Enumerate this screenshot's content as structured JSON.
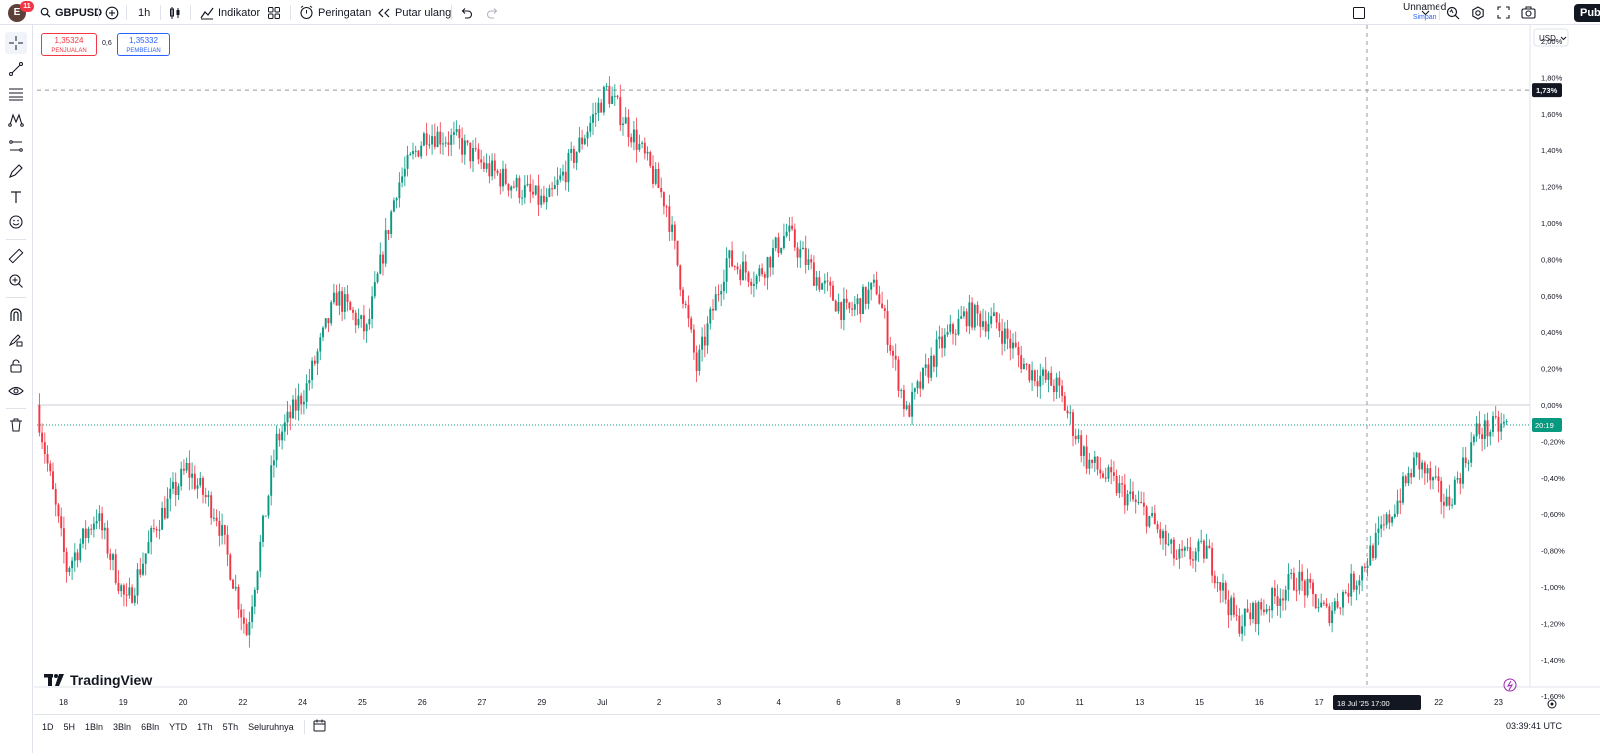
{
  "topbar": {
    "avatar_letter": "E",
    "notification_count": "11",
    "symbol": "GBPUSD",
    "interval": "1h",
    "indicators_label": "Indikator",
    "alert_label": "Peringatan",
    "replay_label": "Putar ulang",
    "layout_name": "Unnamed",
    "layout_save": "Simpan",
    "publish_label": "Pub"
  },
  "order_panel": {
    "sell_price": "1,35324",
    "sell_label": "PENJUALAN",
    "spread": "0,6",
    "buy_price": "1,35332",
    "buy_label": "PEMBELIAN"
  },
  "price_scale": {
    "currency": "USD",
    "crosshair_label": "1,73%",
    "countdown_label": "20:19"
  },
  "time_scale": {
    "crosshair_label": "18 Jul '25   17:00"
  },
  "watermark": "TradingView",
  "bottombar": {
    "ranges": [
      "1D",
      "5H",
      "1Bln",
      "3Bln",
      "6Bln",
      "YTD",
      "1Th",
      "5Th",
      "Seluruhnya"
    ],
    "clock": "03:39:41 UTC"
  },
  "colors": {
    "up": "#089981",
    "down": "#f23645",
    "accent": "#2962ff",
    "text": "#131722",
    "grid": "#e0e3eb"
  },
  "icons": [
    "search-icon",
    "plus-circle-icon",
    "candles-icon",
    "indicators-icon",
    "templates-icon",
    "alert-icon",
    "replay-icon",
    "undo-icon",
    "redo-icon",
    "layout-icon",
    "chevron-down-icon",
    "quick-search-icon",
    "settings-icon",
    "fullscreen-icon",
    "camera-icon",
    "crosshair-icon",
    "trend-line-icon",
    "fib-icon",
    "pattern-icon",
    "projection-icon",
    "brush-icon",
    "text-icon",
    "emoji-icon",
    "ruler-icon",
    "zoom-icon",
    "magnet-icon",
    "lock-draw-icon",
    "lock-icon",
    "eye-icon",
    "trash-icon",
    "calendar-icon",
    "lightning-icon",
    "gear-icon"
  ],
  "chart_data": {
    "type": "candlestick",
    "symbol": "GBPUSD",
    "interval": "1h",
    "yaxis_unit": "percent",
    "y_ticks": [
      "2,00%",
      "1,80%",
      "1,60%",
      "1,40%",
      "1,20%",
      "1,00%",
      "0,80%",
      "0,60%",
      "0,40%",
      "0,20%",
      "0,00%",
      "-0,20%",
      "-0,40%",
      "-0,60%",
      "-0,80%",
      "-1,00%",
      "-1,20%",
      "-1,40%",
      "-1,60%"
    ],
    "ylim": [
      -1.6,
      2.0
    ],
    "x_ticks": [
      "18",
      "19",
      "20",
      "22",
      "24",
      "25",
      "26",
      "27",
      "29",
      "Jul",
      "2",
      "3",
      "4",
      "6",
      "8",
      "9",
      "10",
      "11",
      "13",
      "15",
      "16",
      "17",
      "18",
      "22",
      "23"
    ],
    "crosshair_value": 1.73,
    "last_value": -0.11,
    "path": [
      {
        "day": "18",
        "value": 0.0
      },
      {
        "day": "18",
        "value": -0.9
      },
      {
        "day": "19",
        "value": -0.6
      },
      {
        "day": "19",
        "value": -1.1
      },
      {
        "day": "20",
        "value": -0.65
      },
      {
        "day": "20",
        "value": -0.35
      },
      {
        "day": "22",
        "value": -0.6
      },
      {
        "day": "22",
        "value": -1.25
      },
      {
        "day": "24",
        "value": -0.2
      },
      {
        "day": "24",
        "value": 0.1
      },
      {
        "day": "25",
        "value": 0.6
      },
      {
        "day": "25",
        "value": 0.4
      },
      {
        "day": "26",
        "value": 1.2
      },
      {
        "day": "26",
        "value": 1.5
      },
      {
        "day": "27",
        "value": 1.45
      },
      {
        "day": "27",
        "value": 1.3
      },
      {
        "day": "29",
        "value": 1.2
      },
      {
        "day": "29",
        "value": 1.1
      },
      {
        "day": "Jul",
        "value": 1.4
      },
      {
        "day": "Jul",
        "value": 1.73
      },
      {
        "day": "2",
        "value": 1.45
      },
      {
        "day": "2",
        "value": 1.1
      },
      {
        "day": "3",
        "value": 0.2
      },
      {
        "day": "3",
        "value": 0.8
      },
      {
        "day": "4",
        "value": 0.7
      },
      {
        "day": "4",
        "value": 0.95
      },
      {
        "day": "6",
        "value": 0.7
      },
      {
        "day": "6",
        "value": 0.5
      },
      {
        "day": "8",
        "value": 0.65
      },
      {
        "day": "8",
        "value": -0.05
      },
      {
        "day": "9",
        "value": 0.3
      },
      {
        "day": "9",
        "value": 0.5
      },
      {
        "day": "10",
        "value": 0.45
      },
      {
        "day": "10",
        "value": 0.2
      },
      {
        "day": "11",
        "value": 0.1
      },
      {
        "day": "11",
        "value": -0.3
      },
      {
        "day": "13",
        "value": -0.45
      },
      {
        "day": "13",
        "value": -0.6
      },
      {
        "day": "15",
        "value": -0.85
      },
      {
        "day": "15",
        "value": -0.8
      },
      {
        "day": "16",
        "value": -1.2
      },
      {
        "day": "16",
        "value": -1.1
      },
      {
        "day": "17",
        "value": -0.95
      },
      {
        "day": "17",
        "value": -1.15
      },
      {
        "day": "18",
        "value": -0.95
      },
      {
        "day": "18",
        "value": -0.65
      },
      {
        "day": "22",
        "value": -0.3
      },
      {
        "day": "22",
        "value": -0.55
      },
      {
        "day": "23",
        "value": -0.15
      },
      {
        "day": "23",
        "value": -0.11
      }
    ]
  }
}
